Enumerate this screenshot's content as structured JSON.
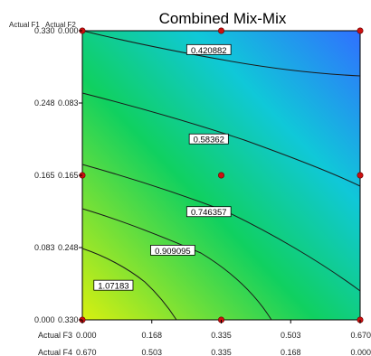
{
  "chart_data": {
    "type": "heatmap",
    "subtype": "contour",
    "title": "Combined Mix-Mix",
    "y_headers": [
      "Actual F1",
      "Actual F2"
    ],
    "x_headers": [
      "Actual F3",
      "Actual F4"
    ],
    "y_ticks": [
      {
        "f1": "0.330",
        "f2": "0.000"
      },
      {
        "f1": "0.248",
        "f2": "0.083"
      },
      {
        "f1": "0.165",
        "f2": "0.165"
      },
      {
        "f1": "0.083",
        "f2": "0.248"
      },
      {
        "f1": "0.000",
        "f2": "0.330"
      }
    ],
    "x_ticks": [
      {
        "f3": "0.000",
        "f4": "0.670"
      },
      {
        "f3": "0.168",
        "f4": "0.503"
      },
      {
        "f3": "0.335",
        "f4": "0.335"
      },
      {
        "f3": "0.503",
        "f4": "0.168"
      },
      {
        "f3": "0.670",
        "f4": "0.000"
      }
    ],
    "x_range": [
      0,
      0.67
    ],
    "y_range": [
      0,
      0.33
    ],
    "contours": [
      {
        "label": "0.420882",
        "label_at": [
          0.305,
          0.308
        ]
      },
      {
        "label": "0.58362",
        "label_at": [
          0.305,
          0.206
        ]
      },
      {
        "label": "0.746357",
        "label_at": [
          0.305,
          0.123
        ]
      },
      {
        "label": "0.909095",
        "label_at": [
          0.218,
          0.079
        ]
      },
      {
        "label": "1.07183",
        "label_at": [
          0.075,
          0.039
        ]
      }
    ],
    "design_points": [
      [
        0,
        0
      ],
      [
        0.335,
        0
      ],
      [
        0.67,
        0
      ],
      [
        0,
        0.165
      ],
      [
        0.335,
        0.165
      ],
      [
        0.67,
        0.165
      ],
      [
        0,
        0.33
      ],
      [
        0.335,
        0.33
      ],
      [
        0.67,
        0.33
      ]
    ],
    "color_scale": {
      "low": "#3070ff",
      "mid": "#10d060",
      "high": "#d8f010"
    },
    "grid": false,
    "legend": "none"
  }
}
